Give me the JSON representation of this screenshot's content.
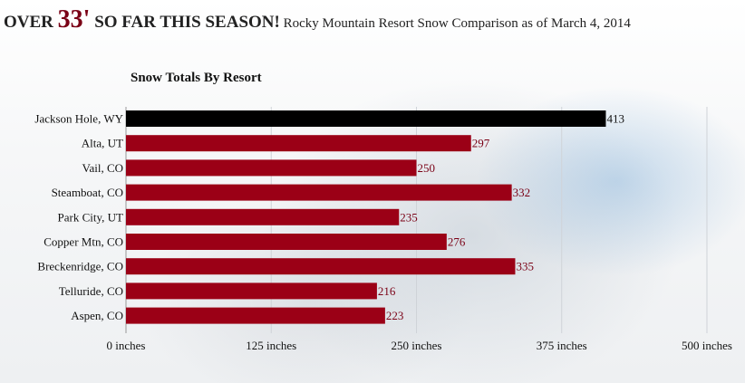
{
  "header": {
    "over": "OVER ",
    "number": "33'",
    "season": " SO FAR THIS SEASON!",
    "subtitle": " Rocky Mountain Resort Snow Comparison as of March 4, 2014"
  },
  "colors": {
    "highlight_bar": "#000000",
    "bar": "#9b0016",
    "value_text": "#7a0015"
  },
  "chart_data": {
    "type": "bar",
    "orientation": "horizontal",
    "title": "Snow Totals By Resort",
    "categories": [
      "Jackson Hole, WY",
      "Alta, UT",
      "Vail, CO",
      "Steamboat, CO",
      "Park City, UT",
      "Copper Mtn, CO",
      "Breckenridge, CO",
      "Telluride, CO",
      "Aspen, CO"
    ],
    "values": [
      413,
      297,
      250,
      332,
      235,
      276,
      335,
      216,
      223
    ],
    "highlight_index": 0,
    "xlim": [
      0,
      500
    ],
    "xticks": [
      0,
      125,
      250,
      375,
      500
    ],
    "xtick_labels": [
      "0 inches",
      "125 inches",
      "250 inches",
      "375 inches",
      "500 inches"
    ],
    "grid": true
  }
}
